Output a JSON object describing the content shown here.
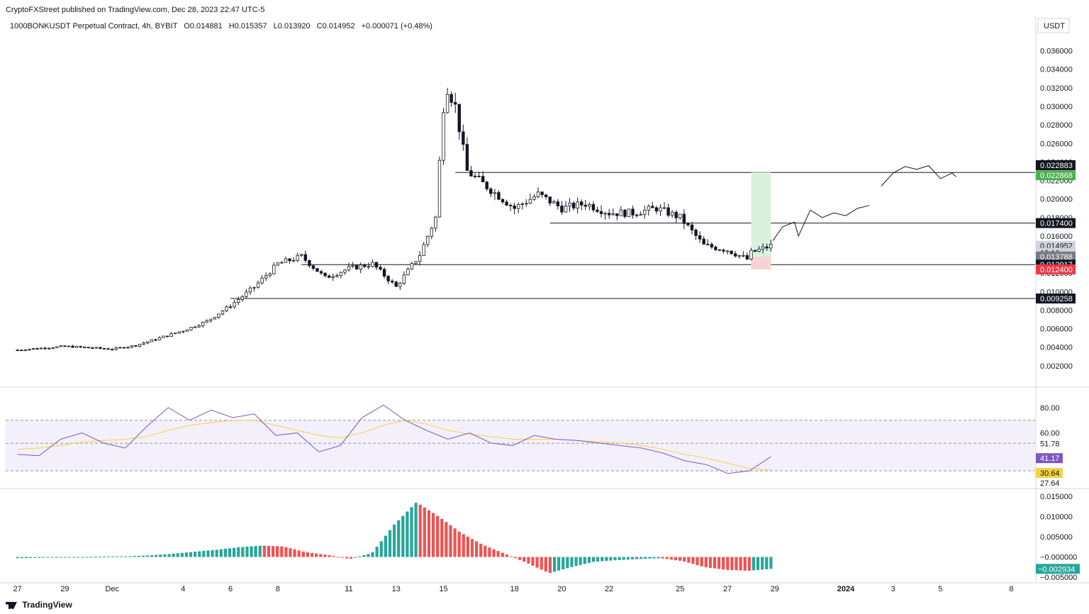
{
  "header": {
    "published": "CryptoFXStreet published on TradingView.com, Dec 28, 2023 22:47 UTC-5",
    "symbol": "1000BONKUSDT Perpetual Contract, 4h, BYBIT",
    "open": "O0.014881",
    "high": "H0.015357",
    "low": "L0.013920",
    "close": "C0.014952",
    "change": "+0.000071 (+0.48%)"
  },
  "footer": {
    "brand": "TradingView"
  },
  "colors": {
    "up": "#ffffff",
    "down": "#131722",
    "hist_up": "#26a69a",
    "hist_down": "#ef5350",
    "rsi": "#7e57c2",
    "rsi_ma": "#f5d33f",
    "target_zone": "#d9f2dc",
    "stop_zone": "#f9d3d3"
  },
  "chart_data": [
    {
      "type": "candlestick",
      "currency": "USDT",
      "x_ticks": [
        "27",
        "29",
        "Dec",
        "4",
        "6",
        "8",
        "11",
        "13",
        "15",
        "18",
        "20",
        "22",
        "25",
        "27",
        "29",
        "2024",
        "3",
        "5",
        "8"
      ],
      "y_ticks": [
        "0.036000",
        "0.034000",
        "0.032000",
        "0.030000",
        "0.028000",
        "0.026000",
        "0.024000",
        "0.022000",
        "0.020000",
        "0.018000",
        "0.016000",
        "0.014000",
        "0.012000",
        "0.010000",
        "0.008000",
        "0.006000",
        "0.004000",
        "0.002000"
      ],
      "ylim": [
        0,
        0.0375
      ],
      "price_path": [
        [
          "2023-11-27",
          0.0037
        ],
        [
          "2023-11-29",
          0.0041
        ],
        [
          "2023-12-01",
          0.0038
        ],
        [
          "2023-12-02",
          0.0042
        ],
        [
          "2023-12-03",
          0.005
        ],
        [
          "2023-12-04",
          0.0058
        ],
        [
          "2023-12-05",
          0.0068
        ],
        [
          "2023-12-06",
          0.0085
        ],
        [
          "2023-12-07",
          0.0105
        ],
        [
          "2023-12-08",
          0.013
        ],
        [
          "2023-12-09",
          0.0138
        ],
        [
          "2023-12-10",
          0.0115
        ],
        [
          "2023-12-11",
          0.0125
        ],
        [
          "2023-12-12",
          0.013
        ],
        [
          "2023-12-13",
          0.0105
        ],
        [
          "2023-12-14",
          0.014
        ],
        [
          "2023-12-14T16:00",
          0.018
        ],
        [
          "2023-12-15",
          0.03
        ],
        [
          "2023-12-15T04:00",
          0.032
        ],
        [
          "2023-12-15T12:00",
          0.03
        ],
        [
          "2023-12-16",
          0.023
        ],
        [
          "2023-12-17",
          0.021
        ],
        [
          "2023-12-18",
          0.019
        ],
        [
          "2023-12-19",
          0.0205
        ],
        [
          "2023-12-20",
          0.019
        ],
        [
          "2023-12-21",
          0.0195
        ],
        [
          "2023-12-22",
          0.0185
        ],
        [
          "2023-12-23",
          0.0185
        ],
        [
          "2023-12-24",
          0.019
        ],
        [
          "2023-12-25",
          0.018
        ],
        [
          "2023-12-26",
          0.015
        ],
        [
          "2023-12-27",
          0.0145
        ],
        [
          "2023-12-27T20:00",
          0.0135
        ],
        [
          "2023-12-28",
          0.0142
        ],
        [
          "2023-12-28T20:00",
          0.014952
        ]
      ],
      "horizontal_levels": [
        0.022868,
        0.0174,
        0.012917,
        0.009258
      ],
      "price_labels": [
        {
          "value": "0.022883",
          "style": "black"
        },
        {
          "value": "0.022868",
          "style": "green"
        },
        {
          "value": "0.017400",
          "style": "black"
        },
        {
          "value": "0.014952",
          "style": "gray"
        },
        {
          "value": "12:16",
          "style": "gray-sub"
        },
        {
          "value": "0.013788",
          "style": "darkgray"
        },
        {
          "value": "0.012917",
          "style": "black"
        },
        {
          "value": "0.012400",
          "style": "red"
        },
        {
          "value": "0.009258",
          "style": "black"
        }
      ],
      "position": {
        "entry": 0.0138,
        "target": 0.022868,
        "stop": 0.0124
      }
    },
    {
      "type": "line",
      "name": "RSI",
      "y_ticks": [
        "80.00",
        "60.00"
      ],
      "levels": [
        70,
        51.78,
        30
      ],
      "labels": [
        {
          "value": "51.78",
          "style": "plain"
        },
        {
          "value": "41.17",
          "style": "purple"
        },
        {
          "value": "30.64",
          "style": "yellow"
        },
        {
          "value": "27.64",
          "style": "plain"
        }
      ],
      "rsi_values": [
        43,
        42,
        55,
        60,
        52,
        48,
        65,
        80,
        70,
        78,
        72,
        75,
        58,
        60,
        45,
        50,
        72,
        82,
        70,
        62,
        55,
        60,
        52,
        50,
        58,
        55,
        54,
        52,
        50,
        48,
        44,
        38,
        35,
        28,
        30,
        41.17
      ],
      "ma_values": [
        47,
        48,
        50,
        53,
        54,
        55,
        57,
        62,
        66,
        68,
        70,
        70,
        66,
        62,
        58,
        56,
        60,
        66,
        70,
        67,
        62,
        59,
        57,
        55,
        55,
        55,
        54,
        53,
        52,
        50,
        47,
        43,
        40,
        36,
        32,
        30.64
      ]
    },
    {
      "type": "bar",
      "name": "MACD histogram",
      "y_ticks": [
        "0.015000",
        "0.010000",
        "0.005000",
        "−0.000000",
        "−0.005000"
      ],
      "ylim": [
        -0.0055,
        0.0155
      ],
      "values": [
        -0.0003,
        -0.0002,
        -0.0001,
        0.0,
        0.0001,
        0.0002,
        0.0004,
        0.0008,
        0.0013,
        0.0018,
        0.0024,
        0.0028,
        0.0026,
        0.0012,
        0.0005,
        -0.0005,
        0.001,
        0.008,
        0.0135,
        0.01,
        0.006,
        0.003,
        0.0008,
        -0.0015,
        -0.004,
        -0.0025,
        -0.0012,
        -0.0008,
        -0.0005,
        -0.0003,
        -0.001,
        -0.0025,
        -0.0032,
        -0.0034,
        -0.002934
      ],
      "last_label": "−0.002934"
    }
  ]
}
